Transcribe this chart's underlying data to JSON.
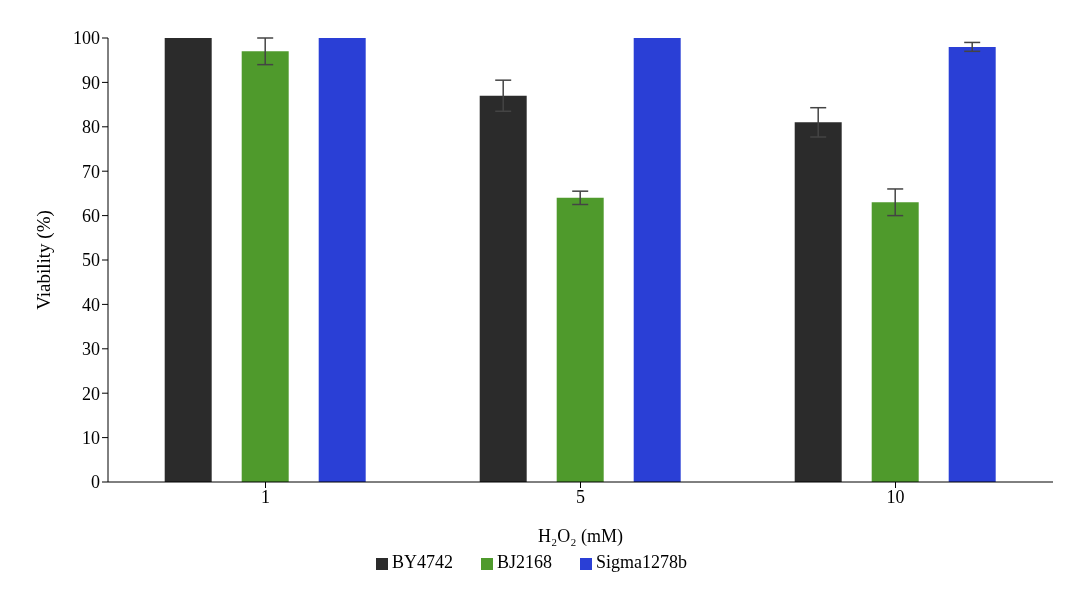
{
  "chart_data": {
    "type": "bar",
    "xlabel": "H₂O₂ (mM)",
    "ylabel": "Viability (%)",
    "categories": [
      "1",
      "5",
      "10"
    ],
    "series": [
      {
        "name": "BY4742",
        "color": "#2b2b2b",
        "values": [
          100,
          87,
          81
        ],
        "errors": [
          null,
          3.5,
          3.3
        ]
      },
      {
        "name": "BJ2168",
        "color": "#4f9a2c",
        "values": [
          97,
          64,
          63
        ],
        "errors": [
          3,
          1.5,
          3
        ]
      },
      {
        "name": "Sigma1278b",
        "color": "#2a3fd6",
        "values": [
          100,
          100,
          98
        ],
        "errors": [
          null,
          null,
          1
        ]
      }
    ],
    "ylim": [
      0,
      100
    ],
    "yticks": [
      0,
      10,
      20,
      30,
      40,
      50,
      60,
      70,
      80,
      90,
      100
    ],
    "grid": false,
    "legend": "bottom"
  }
}
